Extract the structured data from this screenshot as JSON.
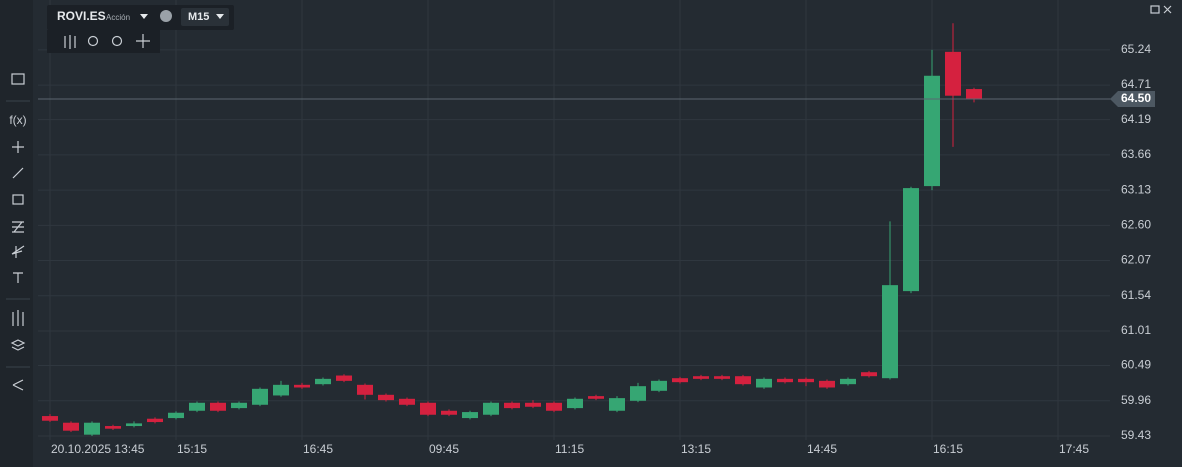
{
  "symbol": "ROVI.ES",
  "instrument_type": "Acción",
  "timeframe": "M15",
  "toolbar_label": "f(x)",
  "chart_data": {
    "type": "candlestick",
    "categories": [
      "20.10.2025 13:45",
      null,
      null,
      null,
      null,
      null,
      "15:15",
      null,
      null,
      null,
      null,
      null,
      "16:45",
      null,
      null,
      null,
      null,
      null,
      "09:45",
      null,
      null,
      null,
      null,
      null,
      "11:15",
      null,
      null,
      null,
      null,
      null,
      "13:15",
      null,
      null,
      null,
      null,
      null,
      "14:45",
      null,
      null,
      null,
      null,
      null,
      "16:15",
      null,
      null,
      null,
      null,
      null,
      "17:45"
    ],
    "open": [
      59.73,
      59.63,
      59.45,
      59.58,
      59.58,
      59.69,
      59.7,
      59.81,
      59.93,
      59.85,
      59.9,
      60.04,
      60.2,
      60.21,
      60.34,
      60.2,
      60.05,
      59.99,
      59.93,
      59.81,
      59.7,
      59.75,
      59.93,
      59.93,
      59.93,
      59.85,
      60.03,
      59.81,
      59.96,
      60.11,
      60.3,
      60.33,
      60.33,
      60.33,
      60.16,
      60.29,
      60.29,
      60.26,
      60.21,
      60.39,
      60.3,
      61.61,
      63.19,
      65.21,
      64.65,
      null,
      null,
      null,
      null
    ],
    "high": [
      59.76,
      59.65,
      59.65,
      59.6,
      59.65,
      59.71,
      59.8,
      59.95,
      59.95,
      59.95,
      60.16,
      60.26,
      60.23,
      60.31,
      60.36,
      60.22,
      60.07,
      60.01,
      59.95,
      59.83,
      59.81,
      59.95,
      59.95,
      59.97,
      59.95,
      60.01,
      60.05,
      60.03,
      60.23,
      60.28,
      60.32,
      60.35,
      60.35,
      60.35,
      60.31,
      60.31,
      60.31,
      60.28,
      60.31,
      60.41,
      62.66,
      63.18,
      65.24,
      65.64,
      64.67,
      null,
      null,
      null,
      null
    ],
    "low": [
      59.64,
      59.49,
      59.43,
      59.52,
      59.56,
      59.62,
      59.68,
      59.79,
      59.79,
      59.83,
      59.88,
      60.02,
      60.14,
      60.19,
      60.24,
      59.98,
      59.95,
      59.88,
      59.73,
      59.73,
      59.68,
      59.73,
      59.83,
      59.85,
      59.79,
      59.83,
      59.97,
      59.79,
      59.94,
      60.09,
      60.22,
      60.27,
      60.27,
      60.19,
      60.14,
      60.22,
      60.18,
      60.14,
      60.19,
      60.31,
      60.28,
      61.58,
      63.13,
      63.78,
      64.45,
      null,
      null,
      null,
      null
    ],
    "close": [
      59.66,
      59.51,
      59.63,
      59.54,
      59.62,
      59.64,
      59.78,
      59.93,
      59.81,
      59.93,
      60.14,
      60.2,
      60.16,
      60.29,
      60.26,
      60.05,
      59.97,
      59.9,
      59.75,
      59.75,
      59.79,
      59.93,
      59.85,
      59.87,
      59.81,
      59.99,
      59.99,
      60.0,
      60.18,
      60.26,
      60.24,
      60.29,
      60.29,
      60.21,
      60.29,
      60.24,
      60.24,
      60.16,
      60.29,
      60.33,
      61.7,
      63.16,
      64.85,
      64.55,
      64.5,
      null,
      null,
      null,
      null
    ],
    "up_color": "#36a673",
    "down_color": "#d5213f",
    "ylim": [
      59.37,
      65.99
    ],
    "yticks": [
      65.24,
      64.71,
      64.19,
      63.66,
      63.13,
      {
        "value": 62.6,
        "label": "62.60"
      },
      62.07,
      61.54,
      61.01,
      60.49,
      59.96,
      59.43
    ],
    "current_price": {
      "value": 64.5,
      "label": "64.50"
    },
    "grid": true
  }
}
